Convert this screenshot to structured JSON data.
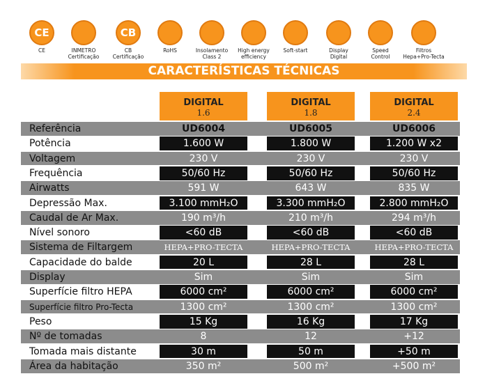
{
  "icons": [
    {
      "glyph": "CE",
      "label": [
        "CE"
      ]
    },
    {
      "label": [
        "INMETRO",
        "Certificação"
      ]
    },
    {
      "glyph": "CB",
      "label": [
        "CB",
        "Certificação"
      ]
    },
    {
      "label": [
        "RoHS"
      ]
    },
    {
      "label": [
        "Insolamento",
        "Class 2"
      ]
    },
    {
      "label": [
        "High energy",
        "efficiency"
      ]
    },
    {
      "label": [
        "Soft-start"
      ]
    },
    {
      "label": [
        "Display",
        "Digital"
      ]
    },
    {
      "label": [
        "Speed",
        "Control"
      ]
    },
    {
      "label": [
        "Filtros",
        "Hepa+Pro-Tecta"
      ]
    }
  ],
  "banner": "CARACTERÍSTICAS TÉCNICAS",
  "columns": [
    {
      "title": "DIGITAL",
      "model": "1.6"
    },
    {
      "title": "DIGITAL",
      "model": "1.8"
    },
    {
      "title": "DIGITAL",
      "model": "2.4"
    }
  ],
  "rows": [
    [
      "Referência",
      "UD6004",
      "UD6005",
      "UD6006"
    ],
    [
      "Potência",
      "1.600 W",
      "1.800 W",
      "1.200 W x2"
    ],
    [
      "Voltagem",
      "230 V",
      "230 V",
      "230 V"
    ],
    [
      "Frequência",
      "50/60 Hz",
      "50/60 Hz",
      "50/60 Hz"
    ],
    [
      "Airwatts",
      "591 W",
      "643 W",
      "835 W"
    ],
    [
      "Depressão Max.",
      "3.100 mmH₂O",
      "3.300 mmH₂O",
      "2.800 mmH₂O"
    ],
    [
      "Caudal de Ar Max.",
      "190 m³/h",
      "210 m³/h",
      "294 m³/h"
    ],
    [
      "Nível sonoro",
      "<60 dB",
      "<60 dB",
      "<60 dB"
    ],
    [
      "Sistema de Filtargem",
      "HEPA+PRO-TECTA",
      "HEPA+PRO-TECTA",
      "HEPA+PRO-TECTA"
    ],
    [
      "Capacidade do balde",
      "20 L",
      "28 L",
      "28 L"
    ],
    [
      "Display",
      "Sim",
      "Sim",
      "Sim"
    ],
    [
      "Superfície filtro HEPA",
      "6000 cm²",
      "6000 cm²",
      "6000 cm²"
    ],
    [
      "Superfície filtro Pro-Tecta",
      "1300 cm²",
      "1300 cm²",
      "1300 cm²"
    ],
    [
      "Peso",
      "15 Kg",
      "16 Kg",
      "17 Kg"
    ],
    [
      "Nº de tomadas",
      "8",
      "12",
      "+12"
    ],
    [
      "Tomada mais distante",
      "30 m",
      "50 m",
      "+50 m"
    ],
    [
      "Área da habitação",
      "350 m²",
      "500 m²",
      "+500 m²"
    ]
  ]
}
